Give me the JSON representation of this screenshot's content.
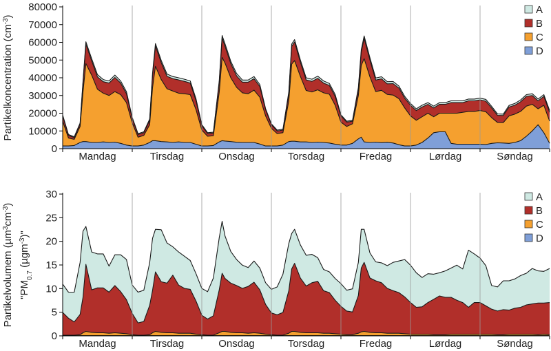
{
  "colors": {
    "A": "#cfe9e3",
    "B": "#b12f2a",
    "C": "#f5a02f",
    "D": "#7f9fd8",
    "line": "#1a1a1a"
  },
  "chart_data": [
    {
      "type": "area",
      "stacked": true,
      "ylabel_parts": [
        "Partikelkoncentration (cm",
        "-3",
        ")"
      ],
      "ylim": [
        0,
        80000
      ],
      "yticks": [
        0,
        10000,
        20000,
        30000,
        40000,
        50000,
        60000,
        70000,
        80000
      ],
      "ytick_labels": [
        "0",
        "10000",
        "20000",
        "30000",
        "40000",
        "50000",
        "60000",
        "70000",
        "80000"
      ],
      "x_range": [
        0,
        168
      ],
      "x_unit": "hour of week",
      "day_labels": [
        "Mandag",
        "Tirsdag",
        "Onsdag",
        "Torsdag",
        "Fredag",
        "Lørdag",
        "Søndag"
      ],
      "legend": [
        "A",
        "B",
        "C",
        "D"
      ],
      "legend_position": "top-right",
      "x": [
        0,
        2,
        4,
        6,
        7,
        8,
        10,
        12,
        14,
        16,
        18,
        20,
        22,
        24,
        26,
        28,
        30,
        31,
        32,
        34,
        36,
        38,
        40,
        42,
        44,
        46,
        48,
        50,
        52,
        54,
        55,
        56,
        58,
        60,
        62,
        64,
        66,
        68,
        70,
        72,
        74,
        76,
        78,
        79,
        80,
        82,
        84,
        86,
        88,
        90,
        92,
        94,
        96,
        98,
        100,
        102,
        103,
        104,
        106,
        108,
        110,
        112,
        114,
        116,
        118,
        120,
        122,
        124,
        126,
        128,
        130,
        132,
        134,
        136,
        138,
        140,
        142,
        144,
        146,
        148,
        150,
        152,
        154,
        156,
        158,
        160,
        162,
        164,
        166,
        168
      ],
      "series": [
        {
          "name": "D",
          "values": [
            1500,
            1500,
            1800,
            3500,
            4000,
            4000,
            3500,
            3500,
            3800,
            3500,
            3700,
            3000,
            2000,
            1500,
            1500,
            2000,
            3500,
            4500,
            4500,
            4000,
            3800,
            3500,
            3800,
            3500,
            3500,
            2500,
            1500,
            1500,
            1800,
            3800,
            4500,
            4300,
            4000,
            3600,
            3500,
            3500,
            3500,
            2600,
            1500,
            1500,
            1500,
            2000,
            4000,
            4200,
            4200,
            3800,
            3800,
            3500,
            3700,
            3500,
            3200,
            2500,
            2000,
            2000,
            3000,
            5500,
            6500,
            3800,
            3500,
            3700,
            3400,
            3600,
            3200,
            2200,
            1500,
            1500,
            2000,
            3500,
            6000,
            9000,
            9500,
            9500,
            3000,
            2500,
            2500,
            2500,
            2500,
            2500,
            2300,
            3000,
            3300,
            3200,
            3000,
            3500,
            4500,
            7000,
            10000,
            13500,
            9000,
            3000
          ]
        },
        {
          "name": "C",
          "values": [
            14000,
            4500,
            3500,
            9000,
            28000,
            44000,
            38000,
            30000,
            27500,
            26500,
            28500,
            27500,
            24000,
            13000,
            5000,
            5500,
            10000,
            30000,
            42000,
            35000,
            30000,
            29000,
            27500,
            27500,
            27000,
            19500,
            9000,
            5500,
            5500,
            28000,
            47000,
            44000,
            36000,
            31000,
            28000,
            27500,
            29500,
            26500,
            17000,
            10000,
            7000,
            7000,
            23000,
            43500,
            45500,
            37000,
            29000,
            28500,
            29500,
            28000,
            27500,
            22000,
            13000,
            10500,
            11000,
            24500,
            40500,
            47000,
            37000,
            28500,
            29500,
            27000,
            27000,
            26000,
            21500,
            17000,
            14000,
            14500,
            14000,
            9000,
            10500,
            10500,
            17000,
            17500,
            18000,
            18500,
            18500,
            19000,
            18500,
            14500,
            11500,
            11500,
            15500,
            16000,
            16500,
            17000,
            15000,
            9000,
            15500,
            12500
          ]
        },
        {
          "name": "B",
          "values": [
            3000,
            1500,
            1000,
            1500,
            5000,
            11000,
            8000,
            7000,
            6500,
            7000,
            8000,
            6500,
            5000,
            2500,
            1500,
            1500,
            2500,
            7000,
            11500,
            9500,
            7000,
            7000,
            7500,
            7000,
            6500,
            5000,
            2500,
            1500,
            1500,
            5500,
            11000,
            9500,
            8000,
            6500,
            6000,
            6500,
            6500,
            6000,
            3500,
            2000,
            1500,
            1500,
            4000,
            10000,
            10500,
            8000,
            6000,
            6000,
            6500,
            5500,
            5000,
            5000,
            3500,
            2500,
            1500,
            3500,
            7500,
            11500,
            9500,
            6500,
            6500,
            6000,
            6500,
            6000,
            5500,
            6000,
            5500,
            5500,
            5000,
            5000,
            5000,
            5000,
            6000,
            6000,
            5500,
            6000,
            6000,
            6000,
            6000,
            5500,
            4000,
            4000,
            5000,
            5000,
            5500,
            5500,
            5000,
            4500,
            5000,
            5000
          ]
        },
        {
          "name": "A",
          "values": [
            500,
            500,
            400,
            500,
            1000,
            1300,
            1300,
            1300,
            1200,
            1200,
            1300,
            1200,
            1100,
            600,
            500,
            500,
            700,
            1200,
            1300,
            1300,
            1300,
            1200,
            1200,
            1200,
            1200,
            1100,
            600,
            500,
            500,
            1000,
            1400,
            1400,
            1300,
            1300,
            1200,
            1200,
            1200,
            1100,
            600,
            500,
            500,
            500,
            1000,
            1300,
            1300,
            1300,
            1200,
            1200,
            1200,
            1200,
            1100,
            1100,
            600,
            500,
            500,
            1000,
            1300,
            1300,
            1300,
            1200,
            1200,
            1200,
            1200,
            1100,
            1000,
            1000,
            1000,
            1000,
            1000,
            1000,
            1000,
            1000,
            1000,
            1000,
            1000,
            1000,
            1000,
            1000,
            1000,
            900,
            800,
            800,
            900,
            1000,
            1000,
            1000,
            1000,
            1000,
            1000,
            1000
          ]
        }
      ]
    },
    {
      "type": "area",
      "stacked": true,
      "ylabel_parts": [
        "Partikelvolumem (µm",
        "3",
        "cm",
        "-3",
        ")"
      ],
      "ylabel2_parts": [
        "\"PM",
        "0.7",
        " (µgm",
        "-3",
        ")\""
      ],
      "ylim": [
        0,
        30
      ],
      "yticks": [
        0,
        5,
        10,
        15,
        20,
        25,
        30
      ],
      "ytick_labels": [
        "0",
        "5",
        "10",
        "15",
        "20",
        "25",
        "30"
      ],
      "x_range": [
        0,
        168
      ],
      "x_unit": "hour of week",
      "day_labels": [
        "Mandag",
        "Tirsdag",
        "Onsdag",
        "Torsdag",
        "Fredag",
        "Lørdag",
        "Søndag"
      ],
      "legend": [
        "A",
        "B",
        "C",
        "D"
      ],
      "legend_position": "top-right",
      "x": [
        0,
        2,
        4,
        6,
        7,
        8,
        10,
        12,
        14,
        16,
        18,
        20,
        22,
        24,
        26,
        28,
        30,
        31,
        32,
        34,
        36,
        38,
        40,
        42,
        44,
        46,
        48,
        50,
        52,
        54,
        55,
        56,
        58,
        60,
        62,
        64,
        66,
        68,
        70,
        72,
        74,
        76,
        78,
        79,
        80,
        82,
        84,
        86,
        88,
        90,
        92,
        94,
        96,
        98,
        100,
        102,
        103,
        104,
        106,
        108,
        110,
        112,
        114,
        116,
        118,
        120,
        122,
        124,
        126,
        128,
        130,
        132,
        134,
        136,
        138,
        140,
        142,
        144,
        146,
        148,
        150,
        152,
        154,
        156,
        158,
        160,
        162,
        164,
        166,
        168
      ],
      "series": [
        {
          "name": "D",
          "values": [
            0.05,
            0.05,
            0.05,
            0.05,
            0.05,
            0.05,
            0.05,
            0.05,
            0.05,
            0.05,
            0.05,
            0.05,
            0.05,
            0.05,
            0.05,
            0.05,
            0.05,
            0.05,
            0.05,
            0.05,
            0.05,
            0.05,
            0.05,
            0.05,
            0.05,
            0.05,
            0.05,
            0.05,
            0.05,
            0.05,
            0.05,
            0.05,
            0.05,
            0.05,
            0.05,
            0.05,
            0.05,
            0.05,
            0.05,
            0.05,
            0.05,
            0.05,
            0.05,
            0.05,
            0.05,
            0.05,
            0.05,
            0.05,
            0.05,
            0.05,
            0.05,
            0.05,
            0.05,
            0.05,
            0.05,
            0.05,
            0.05,
            0.05,
            0.05,
            0.05,
            0.05,
            0.05,
            0.05,
            0.05,
            0.05,
            0.05,
            0.05,
            0.05,
            0.05,
            0.05,
            0.05,
            0.05,
            0.05,
            0.05,
            0.05,
            0.05,
            0.05,
            0.05,
            0.05,
            0.05,
            0.05,
            0.05,
            0.05,
            0.05,
            0.05,
            0.05,
            0.05,
            0.05,
            0.05,
            0.05
          ]
        },
        {
          "name": "C",
          "values": [
            0.1,
            0.1,
            0.1,
            0.2,
            0.6,
            0.9,
            0.7,
            0.6,
            0.6,
            0.5,
            0.6,
            0.5,
            0.4,
            0.2,
            0.1,
            0.1,
            0.2,
            0.6,
            0.9,
            0.7,
            0.6,
            0.6,
            0.5,
            0.5,
            0.5,
            0.3,
            0.2,
            0.1,
            0.1,
            0.6,
            0.9,
            0.9,
            0.7,
            0.6,
            0.6,
            0.5,
            0.6,
            0.5,
            0.3,
            0.2,
            0.1,
            0.1,
            0.5,
            0.9,
            0.9,
            0.7,
            0.6,
            0.6,
            0.6,
            0.5,
            0.5,
            0.4,
            0.3,
            0.2,
            0.2,
            0.5,
            0.8,
            0.9,
            0.7,
            0.6,
            0.6,
            0.5,
            0.5,
            0.5,
            0.4,
            0.3,
            0.3,
            0.3,
            0.3,
            0.2,
            0.2,
            0.2,
            0.3,
            0.3,
            0.3,
            0.3,
            0.3,
            0.3,
            0.3,
            0.3,
            0.2,
            0.2,
            0.3,
            0.3,
            0.3,
            0.3,
            0.3,
            0.2,
            0.3,
            0.2
          ]
        },
        {
          "name": "B",
          "values": [
            4.8,
            3.6,
            2.8,
            4.3,
            7.5,
            14.2,
            9.0,
            9.5,
            9.5,
            8.7,
            10.0,
            8.8,
            7.2,
            4.5,
            2.6,
            2.9,
            6.2,
            9.0,
            12.6,
            10.7,
            10.5,
            12.2,
            10.2,
            9.5,
            9.3,
            7.0,
            4.1,
            3.4,
            4.1,
            9.1,
            12.3,
            11.2,
            10.4,
            10.0,
            9.4,
            9.9,
            10.7,
            9.2,
            6.3,
            4.6,
            4.3,
            4.8,
            9.0,
            13.2,
            14.4,
            11.5,
            9.9,
            10.6,
            10.9,
            9.0,
            8.6,
            7.1,
            5.9,
            5.0,
            4.8,
            8.0,
            13.5,
            14.6,
            11.5,
            11.0,
            10.6,
            9.5,
            9.0,
            8.6,
            7.8,
            6.7,
            5.7,
            5.8,
            6.7,
            7.5,
            8.2,
            7.9,
            7.8,
            7.2,
            6.7,
            5.7,
            6.7,
            6.7,
            6.0,
            5.3,
            5.0,
            5.3,
            5.1,
            5.5,
            5.7,
            6.2,
            6.4,
            6.7,
            6.6,
            6.8
          ]
        },
        {
          "name": "A",
          "values": [
            6.0,
            5.5,
            6.3,
            11.0,
            14.0,
            8.0,
            8.0,
            7.2,
            7.2,
            5.5,
            6.5,
            7.8,
            8.5,
            6.0,
            6.5,
            6.6,
            9.0,
            11.0,
            9.0,
            11.0,
            8.5,
            6.0,
            7.0,
            6.8,
            6.1,
            5.8,
            5.7,
            5.8,
            8.0,
            11.0,
            11.0,
            9.0,
            6.7,
            5.5,
            4.9,
            4.0,
            4.5,
            4.6,
            4.6,
            5.0,
            5.9,
            8.1,
            10.0,
            7.5,
            7.2,
            7.0,
            6.5,
            6.0,
            5.0,
            4.5,
            4.4,
            4.6,
            4.8,
            4.4,
            4.9,
            7.0,
            8.2,
            7.0,
            5.3,
            4.0,
            4.2,
            4.8,
            6.0,
            6.7,
            7.9,
            7.9,
            7.3,
            6.2,
            6.1,
            5.3,
            4.9,
            5.6,
            6.2,
            7.4,
            7.1,
            12.1,
            10.3,
            9.4,
            8.5,
            5.0,
            5.1,
            6.1,
            6.2,
            6.2,
            6.7,
            6.7,
            7.5,
            6.8,
            6.7,
            7.2
          ]
        }
      ]
    }
  ]
}
